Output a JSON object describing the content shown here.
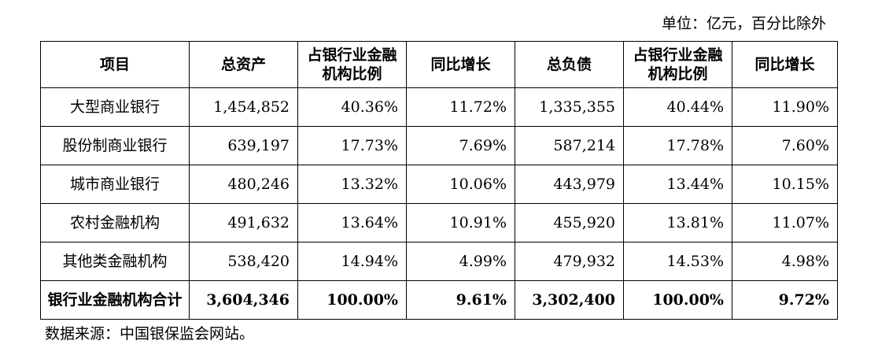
{
  "unit_note": "单位：亿元，百分比除外",
  "headers": [
    "项目",
    "总资产",
    "占银行业金融机构比例",
    "同比增长",
    "总负债",
    "占银行业金融机构比例",
    "同比增长"
  ],
  "rows": [
    [
      "大型商业银行",
      "1,454,852",
      "40.36%",
      "11.72%",
      "1,335,355",
      "40.44%",
      "11.90%"
    ],
    [
      "股份制商业银行",
      "639,197",
      "17.73%",
      "7.69%",
      "587,214",
      "17.78%",
      "7.60%"
    ],
    [
      "城市商业银行",
      "480,246",
      "13.32%",
      "10.06%",
      "443,979",
      "13.44%",
      "10.15%"
    ],
    [
      "农村金融机构",
      "491,632",
      "13.64%",
      "10.91%",
      "455,920",
      "13.81%",
      "11.07%"
    ],
    [
      "其他类金融机构",
      "538,420",
      "14.94%",
      "4.99%",
      "479,932",
      "14.53%",
      "4.98%"
    ]
  ],
  "total_row": [
    "银行业金融机构合计",
    "3,604,346",
    "100.00%",
    "9.61%",
    "3,302,400",
    "100.00%",
    "9.72%"
  ],
  "source_note": "数据来源：中国银保监会网站。"
}
